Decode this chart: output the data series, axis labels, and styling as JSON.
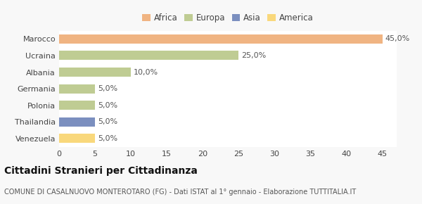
{
  "categories": [
    "Marocco",
    "Ucraina",
    "Albania",
    "Germania",
    "Polonia",
    "Thailandia",
    "Venezuela"
  ],
  "values": [
    45.0,
    25.0,
    10.0,
    5.0,
    5.0,
    5.0,
    5.0
  ],
  "colors": [
    "#F0B482",
    "#BFCC93",
    "#BFCC93",
    "#BFCC93",
    "#BFCC93",
    "#7B8FBF",
    "#F9D87C"
  ],
  "continent_labels": [
    "Africa",
    "Europa",
    "Asia",
    "America"
  ],
  "continent_colors": [
    "#F0B482",
    "#BFCC93",
    "#7B8FBF",
    "#F9D87C"
  ],
  "xlim": [
    0,
    47
  ],
  "xticks": [
    0,
    5,
    10,
    15,
    20,
    25,
    30,
    35,
    40,
    45
  ],
  "title_bold": "Cittadini Stranieri per Cittadinanza",
  "subtitle": "COMUNE DI CASALNUOVO MONTEROTARO (FG) - Dati ISTAT al 1° gennaio - Elaborazione TUTTITALIA.IT",
  "background_color": "#F8F8F8",
  "plot_bg_color": "#FFFFFF",
  "bar_height": 0.55,
  "title_fontsize": 10,
  "subtitle_fontsize": 7,
  "tick_fontsize": 8,
  "label_fontsize": 8,
  "legend_fontsize": 8.5
}
